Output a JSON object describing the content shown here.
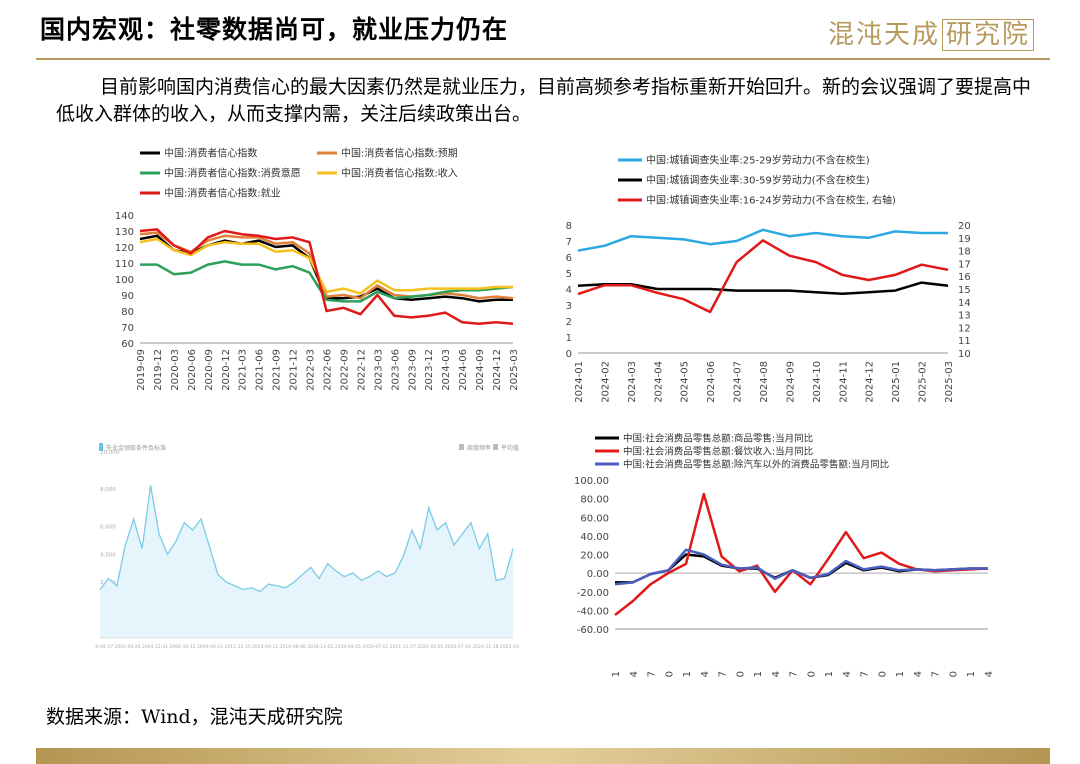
{
  "header": {
    "title": "国内宏观：社零数据尚可，就业压力仍在",
    "logo_text": "混沌天成",
    "logo_boxed": "研究院"
  },
  "body_text": "目前影响国内消费信心的最大因素仍然是就业压力，目前高频参考指标重新开始回升。新的会议强调了要提高中低收入群体的收入，从而支撑内需，关注后续政策出台。",
  "source_text": "数据来源：Wind，混沌天成研究院",
  "chart_data": [
    {
      "type": "line",
      "x": [
        "2019-09",
        "2019-12",
        "2020-03",
        "2020-06",
        "2020-09",
        "2020-12",
        "2021-03",
        "2021-06",
        "2021-09",
        "2021-12",
        "2022-03",
        "2022-06",
        "2022-09",
        "2022-12",
        "2023-03",
        "2023-06",
        "2023-09",
        "2023-12",
        "2024-03",
        "2024-06",
        "2024-09",
        "2024-12",
        "2025-03"
      ],
      "ylim": [
        60,
        140
      ],
      "yticks": [
        60,
        70,
        80,
        90,
        100,
        110,
        120,
        130,
        140
      ],
      "series": [
        {
          "name": "中国:消费者信心指数",
          "color": "#000000",
          "values": [
            125,
            127,
            118,
            116,
            121,
            124,
            122,
            124,
            120,
            121,
            113,
            88,
            88,
            89,
            94,
            88,
            87,
            88,
            89,
            88,
            86,
            87,
            87
          ]
        },
        {
          "name": "中国:消费者信心指数:预期",
          "color": "#e0803a",
          "values": [
            128,
            129,
            121,
            117,
            124,
            127,
            126,
            126,
            122,
            123,
            116,
            89,
            90,
            88,
            96,
            90,
            89,
            90,
            91,
            90,
            88,
            89,
            88
          ]
        },
        {
          "name": "中国:消费者信心指数:消费意愿",
          "color": "#2aa05a",
          "values": [
            109,
            109,
            103,
            104,
            109,
            111,
            109,
            109,
            106,
            108,
            104,
            87,
            86,
            86,
            92,
            88,
            89,
            90,
            92,
            93,
            93,
            94,
            95
          ]
        },
        {
          "name": "中国:消费者信心指数:收入",
          "color": "#f5c01c",
          "values": [
            123,
            125,
            118,
            115,
            121,
            123,
            122,
            122,
            117,
            118,
            113,
            92,
            94,
            91,
            99,
            93,
            93,
            94,
            94,
            94,
            94,
            95,
            95
          ]
        },
        {
          "name": "中国:消费者信心指数:就业",
          "color": "#e01818",
          "values": [
            130,
            131,
            121,
            116,
            126,
            130,
            128,
            127,
            125,
            126,
            123,
            80,
            82,
            78,
            90,
            77,
            76,
            77,
            79,
            73,
            72,
            73,
            72
          ]
        }
      ]
    },
    {
      "type": "line",
      "x": [
        "2024-01",
        "2024-02",
        "2024-03",
        "2024-04",
        "2024-05",
        "2024-06",
        "2024-07",
        "2024-08",
        "2024-09",
        "2024-10",
        "2024-11",
        "2024-12",
        "2025-01",
        "2025-02",
        "2025-03"
      ],
      "ylim": [
        0,
        8
      ],
      "yticks": [
        0,
        1,
        2,
        3,
        4,
        5,
        6,
        7,
        8
      ],
      "y2lim": [
        10,
        20
      ],
      "y2ticks": [
        10,
        11,
        12,
        13,
        14,
        15,
        16,
        17,
        18,
        19,
        20
      ],
      "series": [
        {
          "name": "中国:城镇调查失业率:25-29岁劳动力(不含在校生)",
          "color": "#2aa8e0",
          "axis": "left",
          "values": [
            6.4,
            6.7,
            7.3,
            7.2,
            7.1,
            6.8,
            7.0,
            7.7,
            7.3,
            7.5,
            7.3,
            7.2,
            7.6,
            7.5,
            7.5
          ]
        },
        {
          "name": "中国:城镇调查失业率:30-59岁劳动力(不含在校生)",
          "color": "#000000",
          "axis": "left",
          "values": [
            4.2,
            4.3,
            4.3,
            4.0,
            4.0,
            4.0,
            3.9,
            3.9,
            3.9,
            3.8,
            3.7,
            3.8,
            3.9,
            4.4,
            4.2
          ]
        },
        {
          "name": "中国:城镇调查失业率:16-24岁劳动力(不含在校生, 右轴)",
          "color": "#e01818",
          "axis": "right",
          "values": [
            14.6,
            15.3,
            15.3,
            14.7,
            14.2,
            13.2,
            17.1,
            18.8,
            17.6,
            17.1,
            16.1,
            15.7,
            16.1,
            16.9,
            16.5
          ]
        }
      ]
    },
    {
      "type": "area",
      "title": "失业金领取条件及标准",
      "legend": [
        "周度频率",
        "平均值"
      ],
      "xticks": [
        "2000-04-27",
        "2002-04-24",
        "2004-12-31",
        "2006-10-15",
        "2009-04-11",
        "2011-12-15",
        "2014-04-11",
        "2016-08-08",
        "2018-12-02",
        "2019-04-05",
        "2020-07-01",
        "2021-11-27",
        "2022-05-05",
        "2023-07-02",
        "2024-11-18",
        "2025-03-19"
      ],
      "yticks": [
        "1,500",
        "3,000",
        "4,500",
        "6,000",
        "8,000",
        "10,000",
        "12,000"
      ],
      "values": [
        2600,
        3200,
        2800,
        5000,
        6400,
        4800,
        8200,
        5600,
        4500,
        5200,
        6200,
        5800,
        6400,
        4900,
        3400,
        3000,
        2800,
        2600,
        2700,
        2500,
        2900,
        2800,
        2700,
        3000,
        3400,
        3800,
        3200,
        4000,
        3600,
        3300,
        3500,
        3100,
        3300,
        3600,
        3300,
        3500,
        4400,
        5800,
        4800,
        7000,
        5800,
        6200,
        5000,
        5600,
        6200,
        4800,
        5600,
        3100,
        3200,
        4800
      ]
    },
    {
      "type": "line",
      "x": [
        "2020-01",
        "2020-04",
        "2020-07",
        "2020-10",
        "2021-01",
        "2021-04",
        "2021-07",
        "2021-10",
        "2022-01",
        "2022-04",
        "2022-07",
        "2022-10",
        "2023-01",
        "2023-04",
        "2023-07",
        "2023-10",
        "2024-01",
        "2024-04",
        "2024-07",
        "2024-10",
        "2025-01",
        "2025-04"
      ],
      "ylim": [
        -60,
        100
      ],
      "yticks": [
        "100.00",
        "80.00",
        "60.00",
        "40.00",
        "20.00",
        "0.00",
        "-20.00",
        "-40.00",
        "-60.00"
      ],
      "series": [
        {
          "name": "中国:社会消费品零售总额:商品零售:当月同比",
          "color": "#000000",
          "values": [
            -10,
            -10,
            -1,
            3,
            20,
            18,
            8,
            5,
            5,
            -5,
            3,
            -5,
            -2,
            11,
            3,
            6,
            2,
            4,
            3,
            4,
            5,
            5
          ]
        },
        {
          "name": "中国:社会消费品零售总额:餐饮收入:当月同比",
          "color": "#e01818",
          "values": [
            -45,
            -30,
            -12,
            0,
            10,
            85,
            18,
            2,
            8,
            -20,
            3,
            -12,
            15,
            44,
            16,
            22,
            10,
            4,
            2,
            3,
            4,
            5
          ]
        },
        {
          "name": "中国:社会消费品零售总额:除汽车以外的消费品零售额:当月同比",
          "color": "#4a5ec0",
          "values": [
            -12,
            -10,
            -1,
            3,
            25,
            20,
            9,
            5,
            6,
            -6,
            3,
            -5,
            -1,
            13,
            4,
            7,
            3,
            4,
            3,
            4,
            5,
            5
          ]
        }
      ]
    }
  ]
}
